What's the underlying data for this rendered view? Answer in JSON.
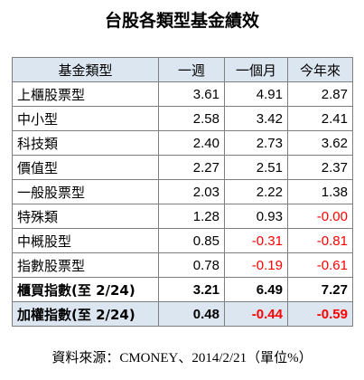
{
  "title": "台股各類型基金績效",
  "table": {
    "header": [
      "基金類型",
      "一週",
      "一個月",
      "今年來"
    ],
    "rows": [
      [
        "上櫃股票型",
        "3.61",
        "4.91",
        "2.87"
      ],
      [
        "中小型",
        "2.58",
        "3.42",
        "2.41"
      ],
      [
        "科技類",
        "2.40",
        "2.73",
        "3.62"
      ],
      [
        "價值型",
        "2.27",
        "2.51",
        "2.37"
      ],
      [
        "一般股票型",
        "2.03",
        "2.22",
        "1.38"
      ],
      [
        "特殊類",
        "1.28",
        "0.93",
        "-0.00"
      ],
      [
        "中概股型",
        "0.85",
        "-0.31",
        "-0.81"
      ],
      [
        "指數股票型",
        "0.78",
        "-0.19",
        "-0.61"
      ],
      [
        "櫃買指數(至 2/24)",
        "3.21",
        "6.49",
        "7.27"
      ],
      [
        "加權指數(至 2/24)",
        "0.48",
        "-0.44",
        "-0.59"
      ]
    ]
  },
  "source": "資料來源：CMONEY、2014/2/21（單位%）"
}
